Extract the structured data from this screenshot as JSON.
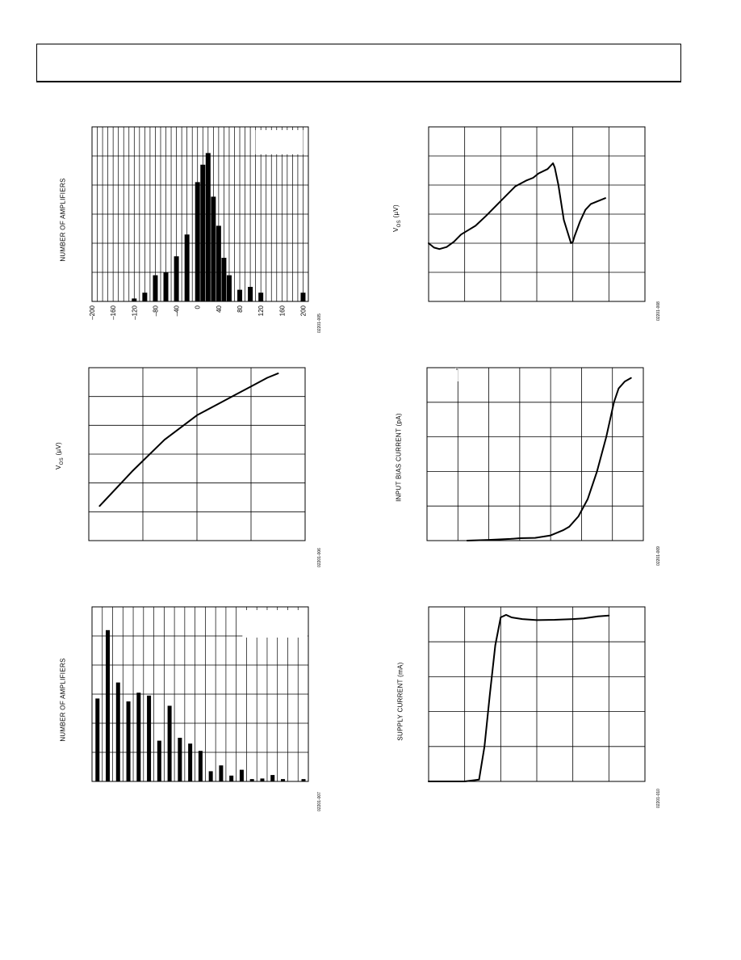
{
  "chart_data": [
    {
      "id": "c1",
      "type": "bar",
      "ylabel": "NUMBER OF AMPLIFIERS",
      "xlabel": "",
      "title": "",
      "fig_id": "02201-005",
      "x_ticks": [
        "–200",
        "–160",
        "–120",
        "–80",
        "–40",
        "0",
        "40",
        "80",
        "120",
        "160",
        "200"
      ],
      "xlim": [
        -200,
        210
      ],
      "ylim": [
        0,
        60
      ],
      "grid": true,
      "x": [
        -120,
        -100,
        -80,
        -60,
        -40,
        -20,
        0,
        10,
        20,
        30,
        40,
        50,
        60,
        80,
        100,
        120,
        140,
        160,
        200
      ],
      "values": [
        1,
        3,
        9,
        10,
        15.5,
        23,
        41,
        47,
        51,
        36,
        26,
        15,
        9,
        4,
        5,
        3,
        0,
        0,
        3
      ]
    },
    {
      "id": "c2",
      "type": "line",
      "ylabel": "V_OS (µV)",
      "xlabel": "",
      "title": "",
      "fig_id": "02201-008",
      "xlim": [
        0,
        6
      ],
      "ylim": [
        0,
        6
      ],
      "grid": true,
      "x": [
        0,
        0.15,
        0.3,
        0.5,
        0.7,
        0.9,
        1.1,
        1.3,
        1.6,
        2.0,
        2.4,
        2.7,
        2.9,
        3.05,
        3.3,
        3.45,
        3.5,
        3.6,
        3.75,
        3.95,
        4.0,
        4.05,
        4.2,
        4.35,
        4.5,
        4.7,
        4.9
      ],
      "values": [
        2.0,
        1.85,
        1.8,
        1.87,
        2.05,
        2.3,
        2.45,
        2.6,
        2.95,
        3.45,
        3.95,
        4.15,
        4.25,
        4.4,
        4.55,
        4.75,
        4.6,
        4.0,
        2.8,
        2.0,
        2.05,
        2.25,
        2.75,
        3.15,
        3.35,
        3.45,
        3.55
      ]
    },
    {
      "id": "c3",
      "type": "line",
      "ylabel": "V_OS (µV)",
      "xlabel": "",
      "title": "",
      "fig_id": "02201-006",
      "xlim": [
        0,
        4
      ],
      "ylim": [
        0,
        6
      ],
      "grid": true,
      "x": [
        0.2,
        0.8,
        1.4,
        2.0,
        2.4,
        2.7,
        3.0,
        3.3,
        3.5
      ],
      "values": [
        1.2,
        2.4,
        3.5,
        4.35,
        4.75,
        5.05,
        5.35,
        5.65,
        5.8
      ]
    },
    {
      "id": "c4",
      "type": "line",
      "ylabel": "INPUT BIAS CURRENT (pA)",
      "xlabel": "",
      "title": "",
      "fig_id": "02201-009",
      "xlim": [
        0,
        7
      ],
      "ylim": [
        0,
        5
      ],
      "grid": true,
      "x": [
        1.3,
        2.0,
        2.7,
        3.0,
        3.5,
        4.0,
        4.4,
        4.6,
        4.9,
        5.2,
        5.5,
        5.8,
        6.05,
        6.2,
        6.4,
        6.6
      ],
      "values": [
        0.0,
        0.02,
        0.05,
        0.07,
        0.08,
        0.15,
        0.3,
        0.4,
        0.7,
        1.2,
        2.0,
        3.0,
        4.0,
        4.4,
        4.6,
        4.7
      ]
    },
    {
      "id": "c5",
      "type": "bar",
      "ylabel": "NUMBER OF AMPLIFIERS",
      "xlabel": "",
      "title": "",
      "fig_id": "02201-007",
      "xlim": [
        0,
        21
      ],
      "ylim": [
        0,
        60
      ],
      "grid": true,
      "x": [
        1,
        2,
        3,
        4,
        5,
        6,
        7,
        8,
        9,
        10,
        11,
        12,
        13,
        14,
        15,
        16,
        17,
        18,
        19,
        21
      ],
      "values": [
        28.5,
        52,
        34,
        27.5,
        30.5,
        29.5,
        14,
        26,
        15,
        13,
        10.5,
        3.5,
        5.5,
        2,
        4,
        0.8,
        1,
        2.2,
        0.8,
        0.8
      ]
    },
    {
      "id": "c6",
      "type": "line",
      "ylabel": "SUPPLY CURRENT (mA)",
      "xlabel": "",
      "title": "",
      "fig_id": "02201-010",
      "xlim": [
        0,
        6
      ],
      "ylim": [
        0,
        5
      ],
      "grid": true,
      "x": [
        0,
        0.5,
        1.0,
        1.4,
        1.55,
        1.7,
        1.85,
        2.0,
        2.15,
        2.3,
        2.6,
        3.0,
        3.5,
        4.0,
        4.3,
        4.5,
        4.7,
        5.0
      ],
      "values": [
        0,
        0,
        0,
        0.05,
        1.0,
        2.5,
        3.9,
        4.7,
        4.77,
        4.7,
        4.65,
        4.62,
        4.63,
        4.65,
        4.67,
        4.7,
        4.73,
        4.75
      ]
    }
  ]
}
